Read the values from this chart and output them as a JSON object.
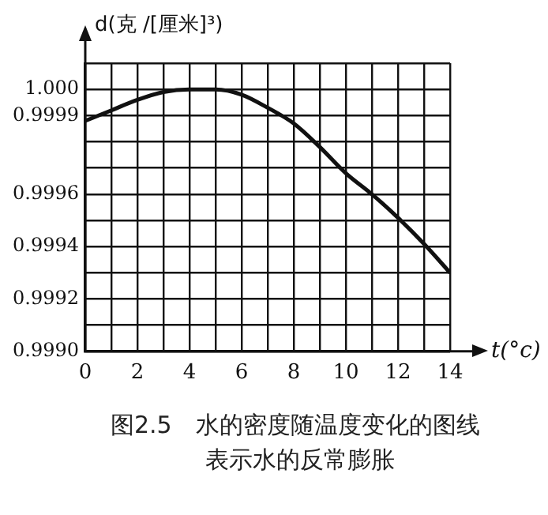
{
  "chart_data": {
    "type": "line",
    "xlabel": "t(°c)",
    "ylabel": "d(克 /[厘米]³)",
    "x": [
      0,
      1,
      2,
      3,
      4,
      5,
      6,
      7,
      8,
      9,
      10,
      11,
      12,
      13,
      14
    ],
    "series": [
      {
        "color": "#111111",
        "values": [
          0.99988,
          0.99992,
          0.99996,
          0.99999,
          1.0,
          1.0,
          0.99998,
          0.99993,
          0.99987,
          0.99978,
          0.99968,
          0.9996,
          0.99951,
          0.99941,
          0.9993
        ]
      }
    ],
    "xlim": [
      0,
      14
    ],
    "xticks": [
      0,
      {
        "value": 1,
        "label": null
      },
      2,
      {
        "value": 3,
        "label": null
      },
      4,
      {
        "value": 5,
        "label": null
      },
      6,
      {
        "value": 7,
        "label": null
      },
      8,
      {
        "value": 9,
        "label": null
      },
      10,
      {
        "value": 11,
        "label": null
      },
      12,
      {
        "value": 13,
        "label": null
      },
      14
    ],
    "ylim": [
      0.999,
      1.0001
    ],
    "yticks": [
      {
        "value": 0.999,
        "label": "0.9990"
      },
      {
        "value": 0.9991,
        "label": null
      },
      0.9992,
      {
        "value": 0.9993,
        "label": null
      },
      0.9994,
      {
        "value": 0.9995,
        "label": null
      },
      0.9996,
      {
        "value": 0.9997,
        "label": null
      },
      {
        "value": 0.9998,
        "label": null
      },
      0.9999,
      {
        "value": 1.0,
        "label": "1.000"
      },
      {
        "value": 1.0001,
        "label": null
      }
    ],
    "grid": true,
    "legend": false,
    "marker": "none",
    "line_style": "solid",
    "annotations": [
      "图2.5　水的密度随温度变化的图线",
      "表示水的反常膨胀"
    ]
  }
}
